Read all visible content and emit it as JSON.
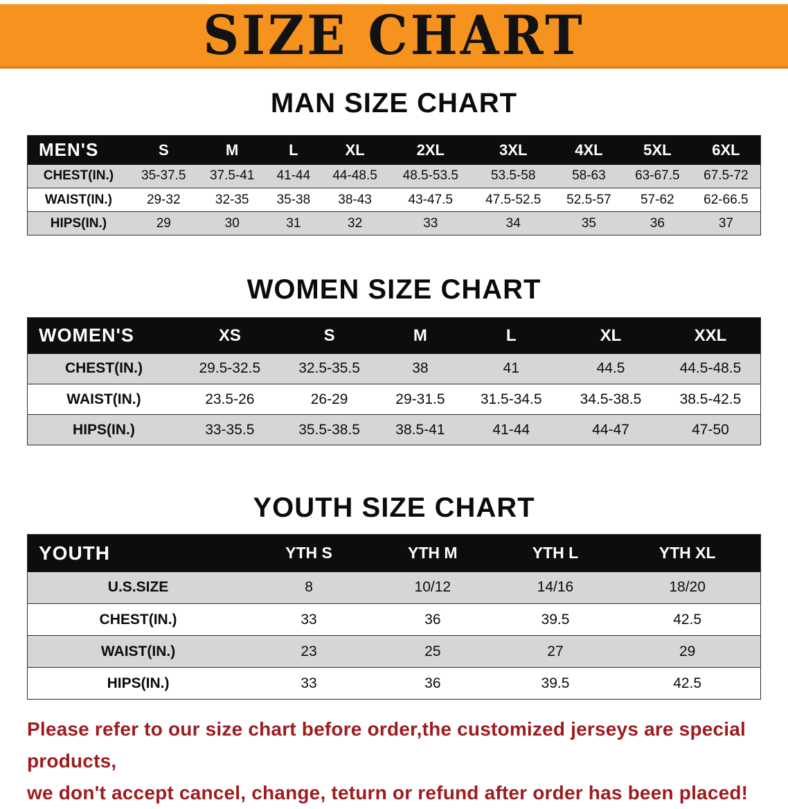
{
  "banner": {
    "title": "SIZE CHART"
  },
  "colors": {
    "banner_orange": "#f6921e",
    "table_header_black": "#0d0d0d",
    "row_gray": "#d6d6d6",
    "note_red": "#9d1c20"
  },
  "chart_data": [
    {
      "type": "table",
      "title": "MAN SIZE CHART",
      "columns": [
        "MEN'S",
        "S",
        "M",
        "L",
        "XL",
        "2XL",
        "3XL",
        "4XL",
        "5XL",
        "6XL"
      ],
      "rows": [
        {
          "label": "CHEST(IN.)",
          "values": [
            "35-37.5",
            "37.5-41",
            "41-44",
            "44-48.5",
            "48.5-53.5",
            "53.5-58",
            "58-63",
            "63-67.5",
            "67.5-72"
          ]
        },
        {
          "label": "WAIST(IN.)",
          "values": [
            "29-32",
            "32-35",
            "35-38",
            "38-43",
            "43-47.5",
            "47.5-52.5",
            "52.5-57",
            "57-62",
            "62-66.5"
          ]
        },
        {
          "label": "HIPS(IN.)",
          "values": [
            "29",
            "30",
            "31",
            "32",
            "33",
            "34",
            "35",
            "36",
            "37"
          ]
        }
      ]
    },
    {
      "type": "table",
      "title": "WOMEN SIZE CHART",
      "columns": [
        "WOMEN'S",
        "XS",
        "S",
        "M",
        "L",
        "XL",
        "XXL"
      ],
      "rows": [
        {
          "label": "CHEST(IN.)",
          "values": [
            "29.5-32.5",
            "32.5-35.5",
            "38",
            "41",
            "44.5",
            "44.5-48.5"
          ]
        },
        {
          "label": "WAIST(IN.)",
          "values": [
            "23.5-26",
            "26-29",
            "29-31.5",
            "31.5-34.5",
            "34.5-38.5",
            "38.5-42.5"
          ]
        },
        {
          "label": "HIPS(IN.)",
          "values": [
            "33-35.5",
            "35.5-38.5",
            "38.5-41",
            "41-44",
            "44-47",
            "47-50"
          ]
        }
      ]
    },
    {
      "type": "table",
      "title": "YOUTH SIZE CHART",
      "columns": [
        "YOUTH",
        "YTH S",
        "YTH M",
        "YTH L",
        "YTH XL"
      ],
      "rows": [
        {
          "label": "U.S.SIZE",
          "values": [
            "8",
            "10/12",
            "14/16",
            "18/20"
          ]
        },
        {
          "label": "CHEST(IN.)",
          "values": [
            "33",
            "36",
            "39.5",
            "42.5"
          ]
        },
        {
          "label": "WAIST(IN.)",
          "values": [
            "23",
            "25",
            "27",
            "29"
          ]
        },
        {
          "label": "HIPS(IN.)",
          "values": [
            "33",
            "36",
            "39.5",
            "42.5"
          ]
        }
      ]
    }
  ],
  "footer": {
    "line1": "Please refer to our size chart before order,the customized jerseys are special products,",
    "line2": "we don't accept cancel, change, teturn or refund after order has been placed!"
  }
}
